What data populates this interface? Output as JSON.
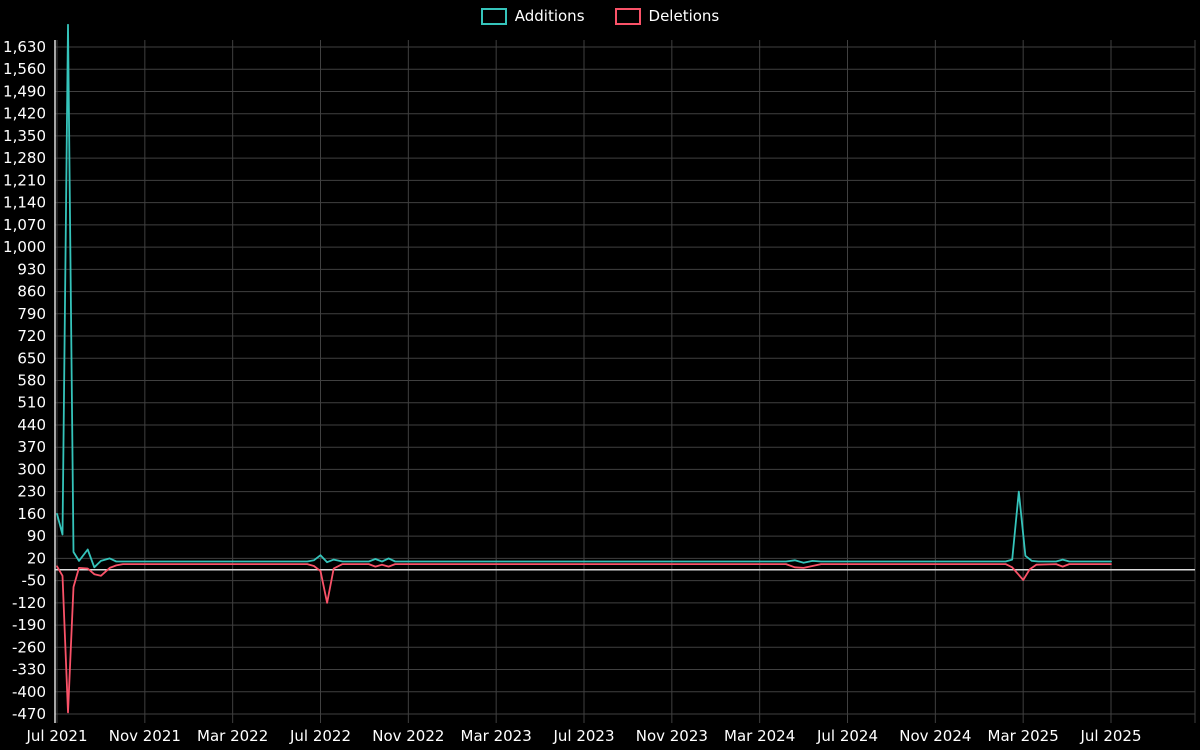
{
  "legend": {
    "additions": "Additions",
    "deletions": "Deletions"
  },
  "colors": {
    "additions": "#35c4bb",
    "deletions": "#fa5268",
    "grid": "#404040",
    "axis": "#dcdcdc",
    "text": "#ffffff",
    "background": "#000000"
  },
  "chart_data": {
    "type": "line",
    "title": "",
    "xlabel": "",
    "ylabel": "",
    "grid": true,
    "legend_position": "top-center",
    "x_axis": {
      "tick_labels": [
        "Jul 2021",
        "Nov 2021",
        "Mar 2022",
        "Jul 2022",
        "Nov 2022",
        "Mar 2023",
        "Jul 2023",
        "Nov 2023",
        "Mar 2024",
        "Jul 2024",
        "Nov 2024",
        "Mar 2025",
        "Jul 2025"
      ],
      "tick_months": [
        0,
        4,
        8,
        12,
        16,
        20,
        24,
        28,
        32,
        36,
        40,
        44,
        48
      ]
    },
    "y_axis": {
      "min": -470,
      "max": 1630,
      "step": 70
    },
    "series": [
      {
        "name": "Additions",
        "color_key": "additions",
        "points": [
          [
            0,
            160
          ],
          [
            0.25,
            95
          ],
          [
            0.5,
            1700
          ],
          [
            0.75,
            40
          ],
          [
            1,
            12
          ],
          [
            1.4,
            48
          ],
          [
            1.7,
            -8
          ],
          [
            2,
            12
          ],
          [
            2.4,
            20
          ],
          [
            2.7,
            10
          ],
          [
            3,
            10
          ],
          [
            11.4,
            10
          ],
          [
            11.7,
            14
          ],
          [
            12.0,
            30
          ],
          [
            12.3,
            8
          ],
          [
            12.6,
            16
          ],
          [
            13,
            10
          ],
          [
            14.2,
            10
          ],
          [
            14.5,
            18
          ],
          [
            14.8,
            10
          ],
          [
            15.1,
            20
          ],
          [
            15.4,
            10
          ],
          [
            33.2,
            10
          ],
          [
            33.6,
            14
          ],
          [
            34.0,
            6
          ],
          [
            34.4,
            12
          ],
          [
            34.8,
            10
          ],
          [
            43.2,
            10
          ],
          [
            43.5,
            16
          ],
          [
            43.8,
            230
          ],
          [
            44.1,
            28
          ],
          [
            44.4,
            12
          ],
          [
            44.7,
            10
          ],
          [
            45.5,
            10
          ],
          [
            45.8,
            16
          ],
          [
            46.1,
            10
          ],
          [
            48,
            10
          ]
        ]
      },
      {
        "name": "Deletions",
        "color_key": "deletions",
        "points": [
          [
            0,
            -5
          ],
          [
            0.25,
            -35
          ],
          [
            0.5,
            -465
          ],
          [
            0.75,
            -70
          ],
          [
            1,
            -10
          ],
          [
            1.4,
            -12
          ],
          [
            1.7,
            -30
          ],
          [
            2,
            -35
          ],
          [
            2.4,
            -10
          ],
          [
            2.7,
            -2
          ],
          [
            3,
            2
          ],
          [
            11.4,
            2
          ],
          [
            11.7,
            -4
          ],
          [
            12.0,
            -20
          ],
          [
            12.3,
            -120
          ],
          [
            12.6,
            -12
          ],
          [
            13,
            2
          ],
          [
            14.2,
            2
          ],
          [
            14.5,
            -6
          ],
          [
            14.8,
            0
          ],
          [
            15.1,
            -6
          ],
          [
            15.4,
            2
          ],
          [
            33.2,
            2
          ],
          [
            33.6,
            -8
          ],
          [
            34.0,
            -10
          ],
          [
            34.4,
            -4
          ],
          [
            34.8,
            2
          ],
          [
            43.2,
            2
          ],
          [
            43.5,
            -8
          ],
          [
            44.0,
            -48
          ],
          [
            44.3,
            -14
          ],
          [
            44.6,
            0
          ],
          [
            45.5,
            2
          ],
          [
            45.8,
            -6
          ],
          [
            46.1,
            2
          ],
          [
            48,
            2
          ]
        ]
      }
    ]
  }
}
